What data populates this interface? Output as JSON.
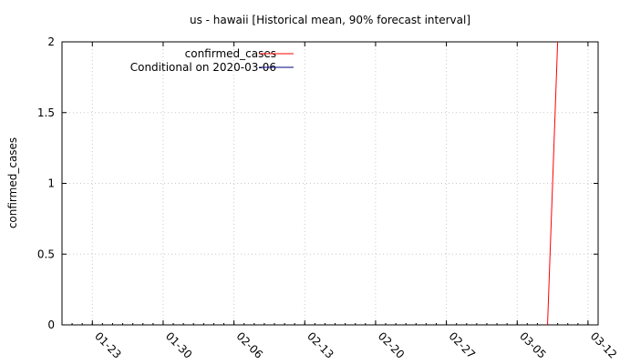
{
  "chart_data": {
    "type": "line",
    "title": "us - hawaii [Historical mean, 90% forecast interval]",
    "xlabel": "",
    "ylabel": "confirmed_cases",
    "x_range": [
      "2020-01-20",
      "2020-03-13"
    ],
    "ylim": [
      0,
      2
    ],
    "x_ticks": [
      "01-23",
      "01-30",
      "02-06",
      "02-13",
      "02-20",
      "02-27",
      "03-05",
      "03-12"
    ],
    "y_ticks": [
      "0",
      "0.5",
      "1",
      "1.5",
      "2"
    ],
    "grid": true,
    "legend_position": "top-left",
    "series": [
      {
        "name": "confirmed_cases",
        "color": "#ff0000",
        "x": [
          "2020-03-08",
          "2020-03-09"
        ],
        "y": [
          0,
          2
        ]
      },
      {
        "name": "Conditional on 2020-03-06",
        "color": "#000080",
        "x": [],
        "y": []
      }
    ]
  }
}
